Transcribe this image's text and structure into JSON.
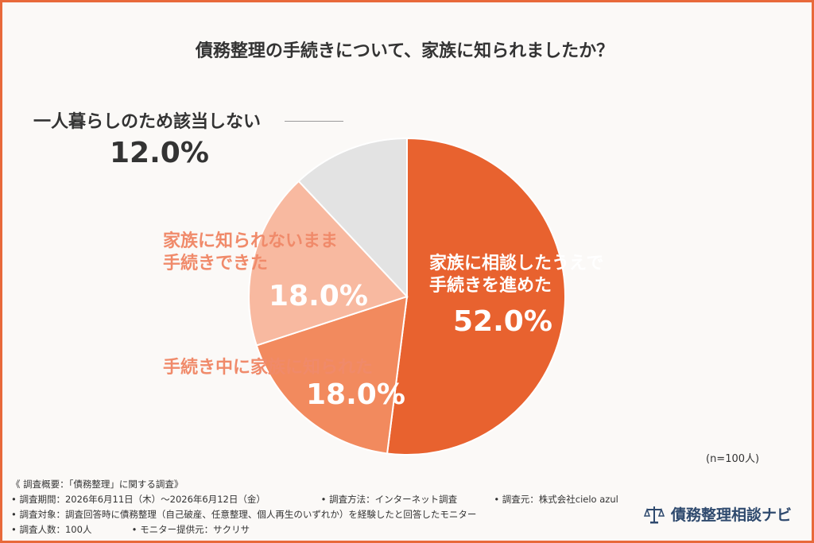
{
  "chart_data": {
    "type": "pie",
    "title": "債務整理の手続きについて、家族に知られましたか？",
    "slices": [
      {
        "label_lines": [
          "家族に相談したうえで",
          "手続きを進めた"
        ],
        "value": 52.0,
        "value_label": "52.0%",
        "color": "#e8622f"
      },
      {
        "label_lines": [
          "手続き中に家族に知られた"
        ],
        "value": 18.0,
        "value_label": "18.0%",
        "color": "#f28a5e"
      },
      {
        "label_lines": [
          "家族に知られないまま",
          "手続きできた"
        ],
        "value": 18.0,
        "value_label": "18.0%",
        "color": "#f8b9a0"
      },
      {
        "label_lines": [
          "一人暮らしのため該当しない"
        ],
        "value": 12.0,
        "value_label": "12.0%",
        "color": "#e3e3e3"
      }
    ],
    "sample_note": "(n=100人)"
  },
  "survey": {
    "heading": "《 調査概要：「債務整理」に関する調査》",
    "period": "• 調査期間：2026年6月11日（木）〜2026年6月12日（金）",
    "method": "• 調査方法：インターネット調査",
    "source": "• 調査元：株式会社cielo azul",
    "target": "• 調査対象：調査回答時に債務整理（自己破産、任意整理、個人再生のいずれか）を経験したと回答したモニター",
    "count": "• 調査人数：100人",
    "provider": "• モニター提供元：サクリサ"
  },
  "brand": {
    "name": "債務整理相談ナビ",
    "icon": "scales-icon"
  }
}
